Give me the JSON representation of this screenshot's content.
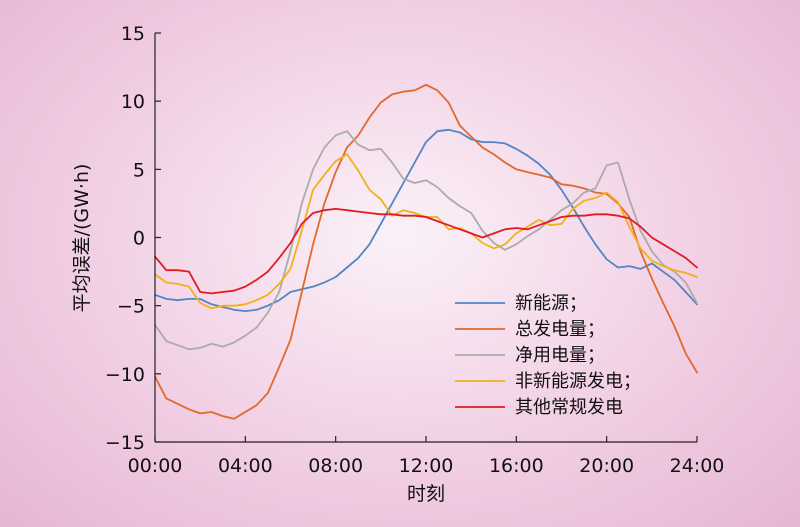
{
  "chart_data": {
    "type": "line",
    "xlabel": "时刻",
    "ylabel": "平均误差/(GW·h)",
    "xlim": [
      0,
      24
    ],
    "ylim": [
      -15,
      15
    ],
    "grid": false,
    "legend_position": "right",
    "x_ticks": [
      {
        "value": 0,
        "label": "00:00"
      },
      {
        "value": 4,
        "label": "04:00"
      },
      {
        "value": 8,
        "label": "08:00"
      },
      {
        "value": 12,
        "label": "12:00"
      },
      {
        "value": 16,
        "label": "16:00"
      },
      {
        "value": 20,
        "label": "20:00"
      },
      {
        "value": 24,
        "label": "24:00"
      }
    ],
    "y_ticks": [
      {
        "value": 15,
        "label": "15"
      },
      {
        "value": 10,
        "label": "10"
      },
      {
        "value": 5,
        "label": "5"
      },
      {
        "value": 0,
        "label": "0"
      },
      {
        "value": -5,
        "label": "−5"
      },
      {
        "value": -10,
        "label": "−10"
      },
      {
        "value": -15,
        "label": "−15"
      }
    ],
    "x": [
      0,
      0.5,
      1,
      1.5,
      2,
      2.5,
      3,
      3.5,
      4,
      4.5,
      5,
      5.5,
      6,
      6.5,
      7,
      7.5,
      8,
      8.5,
      9,
      9.5,
      10,
      10.5,
      11,
      11.5,
      12,
      12.5,
      13,
      13.5,
      14,
      14.5,
      15,
      15.5,
      16,
      16.5,
      17,
      17.5,
      18,
      18.5,
      19,
      19.5,
      20,
      20.5,
      21,
      21.5,
      22,
      22.5,
      23,
      23.5,
      24
    ],
    "series": [
      {
        "name": "新能源；",
        "color": "#4f86c6",
        "values": [
          -4.2,
          -4.5,
          -4.6,
          -4.5,
          -4.5,
          -4.9,
          -5.1,
          -5.3,
          -5.4,
          -5.3,
          -5.0,
          -4.6,
          -4.0,
          -3.8,
          -3.6,
          -3.3,
          -2.9,
          -2.2,
          -1.5,
          -0.5,
          1.0,
          2.5,
          4.0,
          5.5,
          7.0,
          7.8,
          7.9,
          7.7,
          7.2,
          7.0,
          7.0,
          6.9,
          6.5,
          6.0,
          5.4,
          4.6,
          3.5,
          2.2,
          0.8,
          -0.5,
          -1.6,
          -2.2,
          -2.1,
          -2.3,
          -1.9,
          -2.5,
          -3.1,
          -4.0,
          -4.9
        ]
      },
      {
        "name": "总发电量；",
        "color": "#e2692b",
        "values": [
          -10.2,
          -11.8,
          -12.2,
          -12.6,
          -12.9,
          -12.8,
          -13.1,
          -13.3,
          -12.8,
          -12.3,
          -11.4,
          -9.5,
          -7.5,
          -4.0,
          -0.5,
          2.5,
          4.8,
          6.6,
          7.5,
          8.8,
          9.9,
          10.5,
          10.7,
          10.8,
          11.2,
          10.8,
          9.9,
          8.2,
          7.4,
          6.6,
          6.1,
          5.5,
          5.0,
          4.8,
          4.6,
          4.4,
          3.9,
          3.8,
          3.6,
          3.3,
          3.2,
          2.5,
          1.5,
          -1.0,
          -3.0,
          -4.8,
          -6.5,
          -8.5,
          -9.9
        ]
      },
      {
        "name": "净用电量；",
        "color": "#ababab",
        "values": [
          -6.4,
          -7.6,
          -7.9,
          -8.2,
          -8.1,
          -7.8,
          -8.0,
          -7.7,
          -7.2,
          -6.6,
          -5.5,
          -4.0,
          -1.0,
          2.5,
          5.0,
          6.6,
          7.5,
          7.8,
          6.8,
          6.4,
          6.5,
          5.5,
          4.3,
          4.0,
          4.2,
          3.7,
          2.9,
          2.3,
          1.8,
          0.5,
          -0.4,
          -0.9,
          -0.5,
          0.1,
          0.6,
          1.3,
          2.0,
          2.5,
          3.3,
          3.6,
          5.3,
          5.5,
          2.8,
          0.5,
          -1.0,
          -2.0,
          -2.5,
          -3.3,
          -4.8
        ]
      },
      {
        "name": "非新能源发电；",
        "color": "#f0b21a",
        "values": [
          -2.7,
          -3.3,
          -3.4,
          -3.6,
          -4.8,
          -5.2,
          -5.0,
          -5.0,
          -4.9,
          -4.6,
          -4.2,
          -3.4,
          -2.3,
          0.5,
          3.5,
          4.6,
          5.6,
          6.1,
          4.9,
          3.5,
          2.8,
          1.6,
          2.0,
          1.8,
          1.5,
          1.5,
          0.6,
          0.7,
          0.3,
          -0.4,
          -0.8,
          -0.5,
          0.3,
          0.8,
          1.3,
          0.9,
          1.0,
          2.1,
          2.7,
          2.9,
          3.3,
          2.6,
          0.8,
          -0.8,
          -1.7,
          -2.1,
          -2.4,
          -2.6,
          -2.9
        ]
      },
      {
        "name": "其他常规发电",
        "color": "#e01b22",
        "values": [
          -1.4,
          -2.4,
          -2.4,
          -2.5,
          -4.0,
          -4.1,
          -4.0,
          -3.9,
          -3.6,
          -3.1,
          -2.5,
          -1.5,
          -0.4,
          1.0,
          1.8,
          2.0,
          2.1,
          2.0,
          1.9,
          1.8,
          1.7,
          1.7,
          1.6,
          1.6,
          1.5,
          1.2,
          0.9,
          0.6,
          0.3,
          0.0,
          0.3,
          0.6,
          0.7,
          0.6,
          0.9,
          1.2,
          1.5,
          1.6,
          1.6,
          1.7,
          1.7,
          1.6,
          1.4,
          0.8,
          0.0,
          -0.5,
          -1.0,
          -1.5,
          -2.2
        ]
      }
    ]
  }
}
